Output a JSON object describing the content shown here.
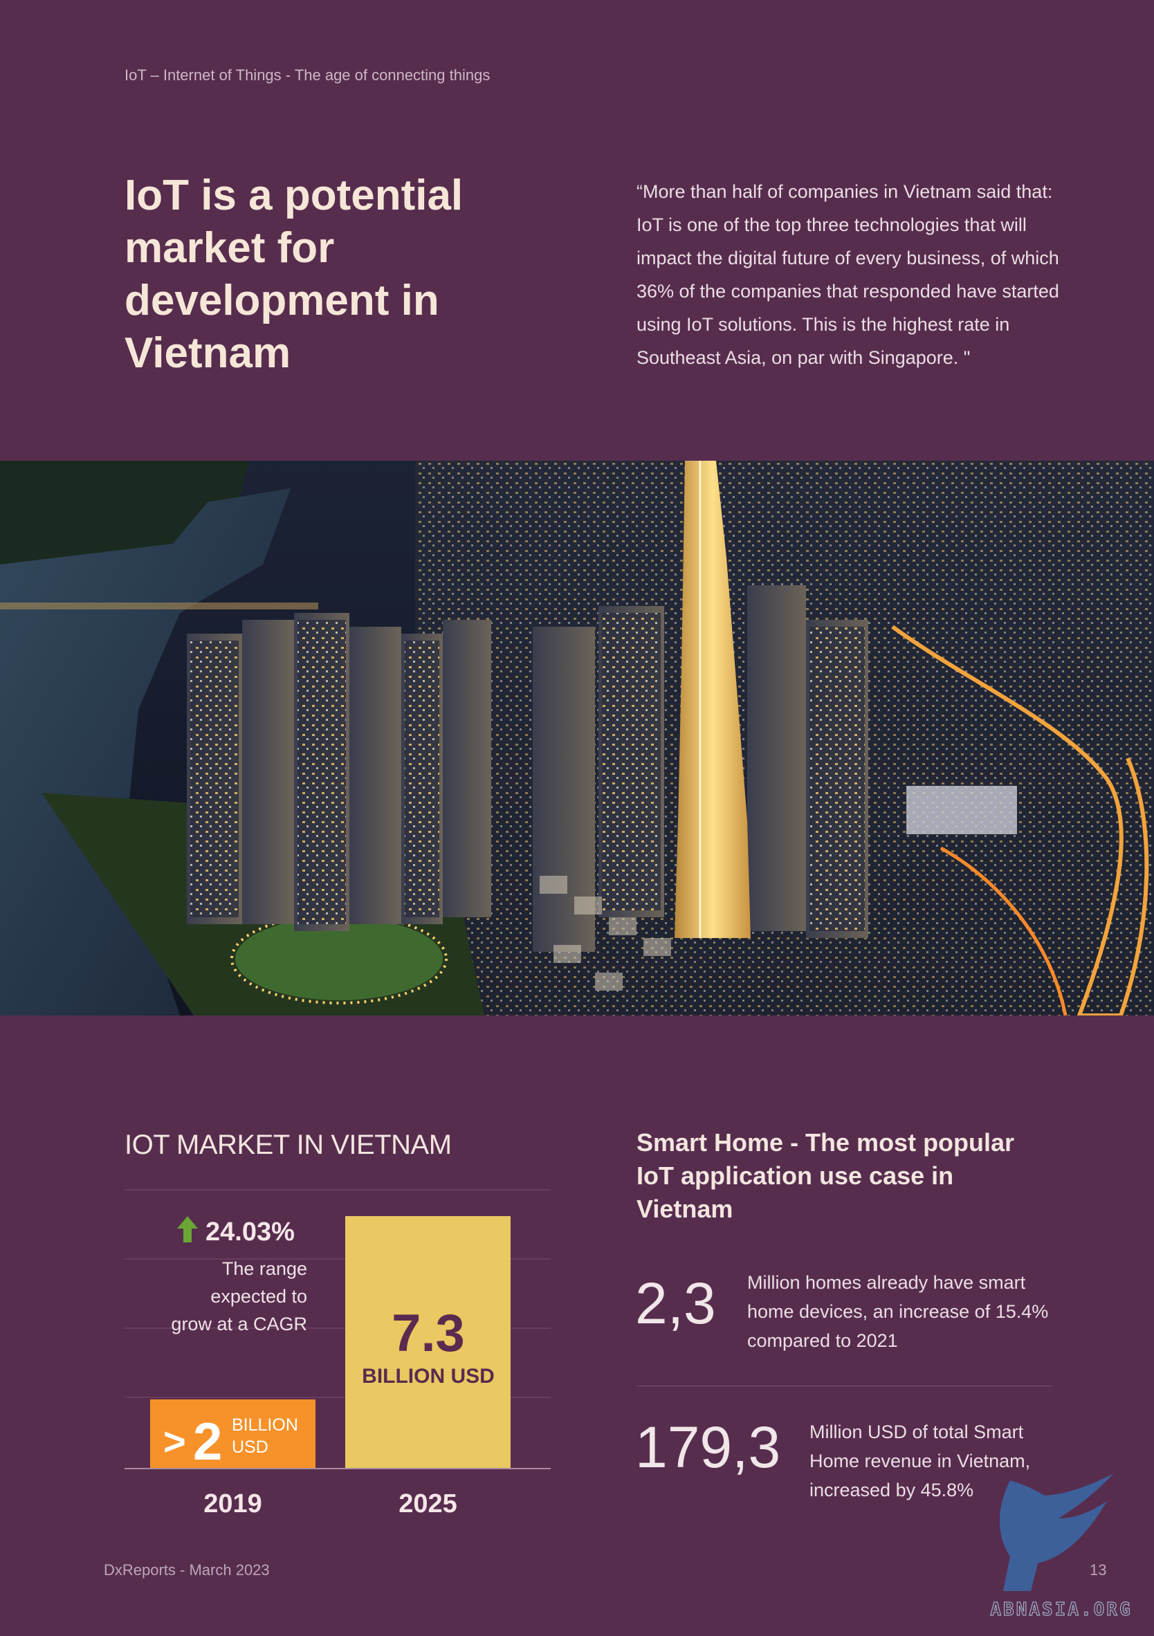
{
  "header": {
    "tagline": "IoT – Internet of Things - The age of connecting things"
  },
  "intro": {
    "headline": "IoT is a potential market for development in Vietnam",
    "quote": "“More than half of companies in Vietnam said that: IoT is one of the top three technologies that will impact the digital future of every business, of which 36% of the companies that responded have started using IoT solutions. This is the highest rate in Southeast Asia, on par with Singapore. \""
  },
  "market": {
    "title": "IOT MARKET IN VIETNAM",
    "cagr_value": "24.03%",
    "cagr_text": [
      "The range",
      "expected to",
      "grow at a CAGR"
    ],
    "bar_2019_prefix": ">",
    "bar_2019_number": "2",
    "bar_2019_unit": [
      "BILLION",
      "USD"
    ],
    "bar_2025_number": "7.3",
    "bar_2025_unit": "BILLION USD",
    "colors": {
      "bar_2019": "#f7922a",
      "bar_2025": "#eac862",
      "arrow": "#6aa535"
    }
  },
  "chart_data": {
    "type": "bar",
    "title": "IOT MARKET IN VIETNAM",
    "categories": [
      "2019",
      "2025"
    ],
    "values": [
      2,
      7.3
    ],
    "unit": "BILLION USD",
    "annotation": "24.03% The range expected to grow at a CAGR"
  },
  "smart_home": {
    "title": "Smart Home - The most popular IoT application use case in Vietnam",
    "stats": [
      {
        "value": "2,3",
        "desc": "Million homes already have smart home devices, an increase of 15.4% compared to 2021"
      },
      {
        "value": "179,3",
        "desc": "Million USD of total Smart Home revenue in Vietnam, increased by 45.8%"
      }
    ]
  },
  "footer": {
    "left": "DxReports - March 2023",
    "page": "13"
  },
  "watermark": {
    "text": "ABNASIA.ORG"
  }
}
